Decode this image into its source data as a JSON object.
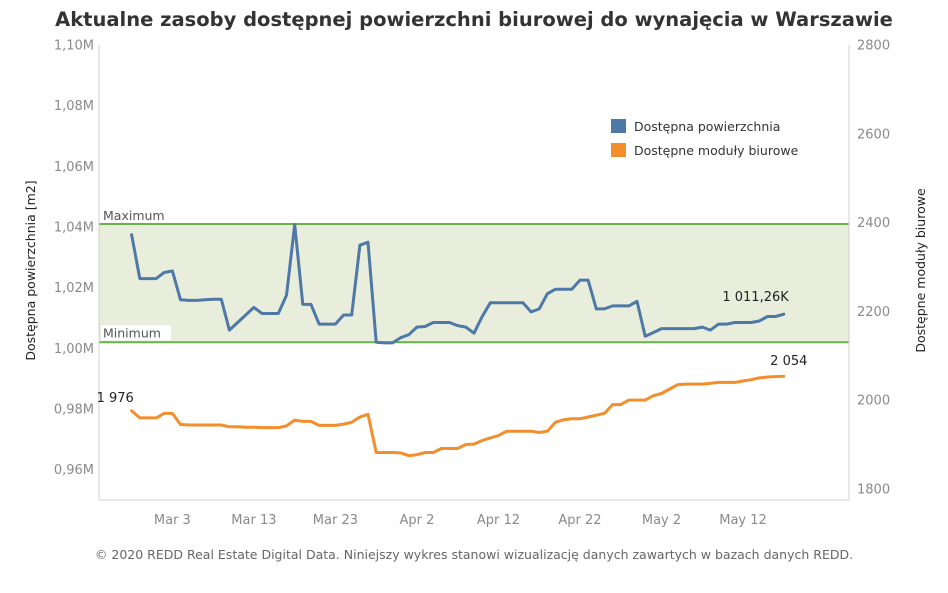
{
  "chart_data": {
    "type": "line",
    "title": "Aktualne zasoby dostępnej powierzchni biurowej do wynajęcia w Warszawie",
    "left_axis": {
      "label": "Dostępna powierzchnia [m2]",
      "ylim": [
        950000,
        1100000
      ],
      "ticks": [
        960000,
        980000,
        1000000,
        1020000,
        1040000,
        1060000,
        1080000,
        1100000
      ],
      "tick_labels": [
        "0,96M",
        "0,98M",
        "1,00M",
        "1,02M",
        "1,04M",
        "1,06M",
        "1,08M",
        "1,10M"
      ]
    },
    "right_axis": {
      "label": "Dostępne moduły biurowe",
      "ylim": [
        1775,
        2800
      ],
      "ticks": [
        1800,
        2000,
        2200,
        2400,
        2600,
        2800
      ],
      "tick_labels": [
        "1800",
        "2000",
        "2200",
        "2400",
        "2600",
        "2800"
      ]
    },
    "x_axis": {
      "range": [
        "2020-02-23",
        "2020-05-25"
      ],
      "ticks": [
        "2020-03-03",
        "2020-03-13",
        "2020-03-23",
        "2020-04-02",
        "2020-04-12",
        "2020-04-22",
        "2020-05-02",
        "2020-05-12"
      ],
      "tick_labels": [
        "Mar 3",
        "Mar 13",
        "Mar 23",
        "Apr 2",
        "Apr 12",
        "Apr 22",
        "May 2",
        "May 12"
      ]
    },
    "band": {
      "min": 1002000,
      "max": 1041000,
      "min_label": "Minimum",
      "max_label": "Maximum",
      "color": "#e8eddc",
      "line_color": "#6ab04c"
    },
    "legend_position": "top-right",
    "series": [
      {
        "name": "Dostępna powierzchnia",
        "axis": "left",
        "color": "#4e79a7",
        "end_label": "1 011,26K",
        "x": [
          "2020-02-27",
          "2020-02-28",
          "2020-02-29",
          "2020-03-01",
          "2020-03-02",
          "2020-03-03",
          "2020-03-04",
          "2020-03-05",
          "2020-03-06",
          "2020-03-07",
          "2020-03-08",
          "2020-03-09",
          "2020-03-10",
          "2020-03-11",
          "2020-03-12",
          "2020-03-13",
          "2020-03-14",
          "2020-03-15",
          "2020-03-16",
          "2020-03-17",
          "2020-03-18",
          "2020-03-19",
          "2020-03-20",
          "2020-03-21",
          "2020-03-22",
          "2020-03-23",
          "2020-03-24",
          "2020-03-25",
          "2020-03-26",
          "2020-03-27",
          "2020-03-28",
          "2020-03-29",
          "2020-03-30",
          "2020-03-31",
          "2020-04-01",
          "2020-04-02",
          "2020-04-03",
          "2020-04-04",
          "2020-04-05",
          "2020-04-06",
          "2020-04-07",
          "2020-04-08",
          "2020-04-09",
          "2020-04-10",
          "2020-04-11",
          "2020-04-12",
          "2020-04-13",
          "2020-04-14",
          "2020-04-15",
          "2020-04-16",
          "2020-04-17",
          "2020-04-18",
          "2020-04-19",
          "2020-04-20",
          "2020-04-21",
          "2020-04-22",
          "2020-04-23",
          "2020-04-24",
          "2020-04-25",
          "2020-04-26",
          "2020-04-27",
          "2020-04-28",
          "2020-04-29",
          "2020-04-30",
          "2020-05-01",
          "2020-05-02",
          "2020-05-03",
          "2020-05-04",
          "2020-05-05",
          "2020-05-06",
          "2020-05-07",
          "2020-05-08",
          "2020-05-09",
          "2020-05-10",
          "2020-05-11",
          "2020-05-12",
          "2020-05-13",
          "2020-05-14",
          "2020-05-15",
          "2020-05-16",
          "2020-05-17"
        ],
        "values": [
          1037500,
          1023000,
          1023000,
          1023000,
          1025000,
          1025500,
          1016000,
          1015800,
          1015800,
          1016000,
          1016200,
          1016200,
          1006000,
          1008500,
          1011000,
          1013500,
          1011500,
          1011500,
          1011500,
          1017500,
          1040800,
          1014500,
          1014500,
          1008000,
          1008000,
          1008000,
          1011000,
          1011000,
          1034000,
          1035000,
          1002000,
          1001800,
          1001800,
          1003500,
          1004500,
          1007000,
          1007200,
          1008500,
          1008500,
          1008500,
          1007500,
          1007000,
          1005000,
          1010500,
          1015000,
          1015000,
          1015000,
          1015000,
          1015000,
          1012000,
          1013000,
          1018000,
          1019500,
          1019500,
          1019500,
          1022500,
          1022500,
          1013000,
          1013000,
          1014000,
          1014000,
          1014000,
          1015500,
          1004000,
          1005200,
          1006500,
          1006500,
          1006500,
          1006500,
          1006500,
          1007000,
          1006000,
          1008000,
          1008000,
          1008500,
          1008500,
          1008500,
          1009000,
          1010500,
          1010500,
          1011260
        ]
      },
      {
        "name": "Dostępne moduły biurowe",
        "axis": "right",
        "color": "#f28e2b",
        "start_label": "1 976",
        "end_label": "2 054",
        "x": [
          "2020-02-27",
          "2020-02-28",
          "2020-02-29",
          "2020-03-01",
          "2020-03-02",
          "2020-03-03",
          "2020-03-04",
          "2020-03-05",
          "2020-03-06",
          "2020-03-07",
          "2020-03-08",
          "2020-03-09",
          "2020-03-10",
          "2020-03-11",
          "2020-03-12",
          "2020-03-13",
          "2020-03-14",
          "2020-03-15",
          "2020-03-16",
          "2020-03-17",
          "2020-03-18",
          "2020-03-19",
          "2020-03-20",
          "2020-03-21",
          "2020-03-22",
          "2020-03-23",
          "2020-03-24",
          "2020-03-25",
          "2020-03-26",
          "2020-03-27",
          "2020-03-28",
          "2020-03-29",
          "2020-03-30",
          "2020-03-31",
          "2020-04-01",
          "2020-04-02",
          "2020-04-03",
          "2020-04-04",
          "2020-04-05",
          "2020-04-06",
          "2020-04-07",
          "2020-04-08",
          "2020-04-09",
          "2020-04-10",
          "2020-04-11",
          "2020-04-12",
          "2020-04-13",
          "2020-04-14",
          "2020-04-15",
          "2020-04-16",
          "2020-04-17",
          "2020-04-18",
          "2020-04-19",
          "2020-04-20",
          "2020-04-21",
          "2020-04-22",
          "2020-04-23",
          "2020-04-24",
          "2020-04-25",
          "2020-04-26",
          "2020-04-27",
          "2020-04-28",
          "2020-04-29",
          "2020-04-30",
          "2020-05-01",
          "2020-05-02",
          "2020-05-03",
          "2020-05-04",
          "2020-05-05",
          "2020-05-06",
          "2020-05-07",
          "2020-05-08",
          "2020-05-09",
          "2020-05-10",
          "2020-05-11",
          "2020-05-12",
          "2020-05-13",
          "2020-05-14",
          "2020-05-15",
          "2020-05-16",
          "2020-05-17"
        ],
        "values": [
          1976,
          1960,
          1960,
          1960,
          1970,
          1970,
          1945,
          1944,
          1944,
          1944,
          1944,
          1944,
          1940,
          1940,
          1939,
          1939,
          1938,
          1938,
          1938,
          1942,
          1955,
          1952,
          1952,
          1943,
          1943,
          1943,
          1946,
          1950,
          1962,
          1968,
          1882,
          1882,
          1882,
          1881,
          1875,
          1877,
          1882,
          1882,
          1891,
          1891,
          1891,
          1900,
          1901,
          1909,
          1915,
          1920,
          1930,
          1930,
          1930,
          1930,
          1927,
          1930,
          1950,
          1956,
          1958,
          1958,
          1962,
          1966,
          1970,
          1990,
          1990,
          2000,
          2000,
          2000,
          2010,
          2015,
          2025,
          2035,
          2036,
          2036,
          2036,
          2038,
          2040,
          2040,
          2040,
          2043,
          2046,
          2050,
          2052,
          2053,
          2054
        ]
      }
    ]
  },
  "footer": "© 2020 REDD Real Estate Digital Data. Niniejszy wykres stanowi wizualizację danych zawartych w bazach danych REDD."
}
